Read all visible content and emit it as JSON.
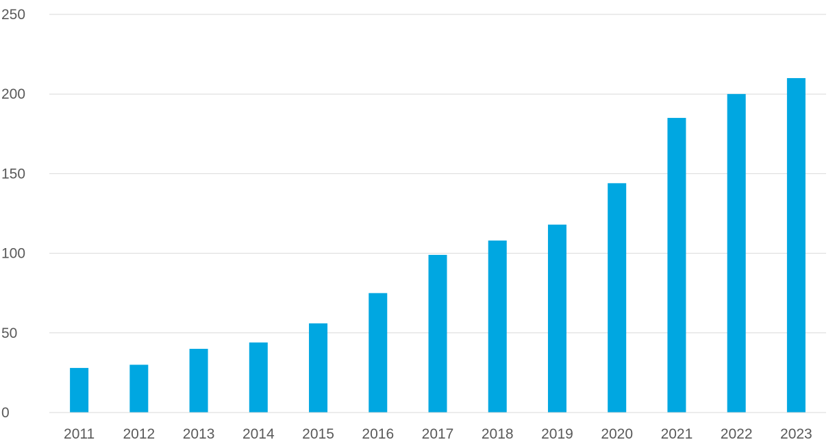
{
  "chart_data": {
    "type": "bar",
    "title": "",
    "xlabel": "",
    "ylabel": "",
    "categories": [
      "2011",
      "2012",
      "2013",
      "2014",
      "2015",
      "2016",
      "2017",
      "2018",
      "2019",
      "2020",
      "2021",
      "2022",
      "2023"
    ],
    "series": [
      {
        "values": [
          28,
          30,
          40,
          44,
          56,
          75,
          99,
          108,
          118,
          144,
          185,
          200,
          210
        ],
        "color": "#00a7e1"
      }
    ],
    "ylim": [
      0,
      250
    ],
    "yticks": [
      "0",
      "50",
      "100",
      "150",
      "200",
      "250"
    ],
    "grid": true,
    "legend": "none"
  }
}
